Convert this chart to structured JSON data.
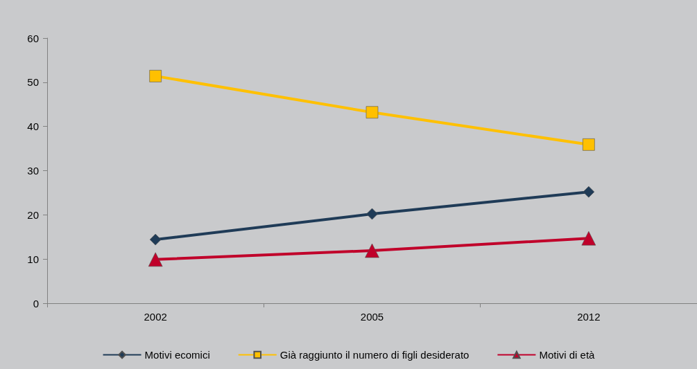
{
  "chart_data": {
    "type": "line",
    "categories": [
      "2002",
      "2005",
      "2012"
    ],
    "series": [
      {
        "name": "Motivi ecomici",
        "color": "#1f3b57",
        "values": [
          14.4,
          20.2,
          25.2
        ],
        "marker": "diamond"
      },
      {
        "name": "Già raggiunto il numero di figli desiderato",
        "color": "#ffc000",
        "values": [
          51.4,
          43.2,
          35.9
        ],
        "marker": "square"
      },
      {
        "name": "Motivi di età",
        "color": "#c0002a",
        "values": [
          9.9,
          11.9,
          14.7
        ],
        "marker": "triangle"
      }
    ],
    "ylim": [
      0,
      60
    ],
    "yticks": [
      0,
      10,
      20,
      30,
      40,
      50,
      60
    ],
    "grid": false,
    "legend": "bottom"
  }
}
